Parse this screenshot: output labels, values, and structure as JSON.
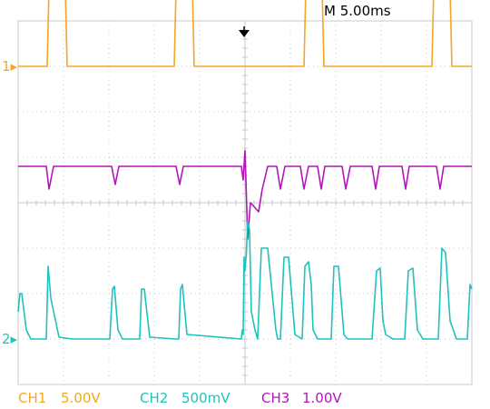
{
  "header": {
    "timebase": "M 5.00ms"
  },
  "colors": {
    "ch1": "#f5a623",
    "ch2": "#1fc2bd",
    "ch3": "#b316b8",
    "grid": "#c8c8c8"
  },
  "channels": [
    {
      "id": "ch1",
      "label": "CH1",
      "scale": "5.00V",
      "marker": "1"
    },
    {
      "id": "ch2",
      "label": "CH2",
      "scale": "500mV",
      "marker": "2"
    },
    {
      "id": "ch3",
      "label": "CH3",
      "scale": "1.00V",
      "marker": ""
    }
  ],
  "chart_data": {
    "type": "line",
    "title": "",
    "xlabel": "",
    "ylabel": "",
    "grid": true,
    "x_unit": "ms",
    "x_per_div": 5.0,
    "x_range": [
      -25,
      25
    ],
    "series": [
      {
        "name": "CH1",
        "volts_per_div": 5.0,
        "offset_div": 3.0,
        "x": [
          -25,
          -21.8,
          -21.6,
          -19.8,
          -19.6,
          -7.8,
          -7.6,
          -5.8,
          -5.6,
          6.5,
          6.7,
          8.5,
          8.7,
          20.6,
          20.8,
          22.6,
          22.8,
          25
        ],
        "y": [
          0,
          0,
          8.5,
          8.5,
          0,
          0,
          8.5,
          8.5,
          0,
          0,
          8.5,
          8.5,
          0,
          0,
          8.5,
          8.5,
          0,
          0
        ]
      },
      {
        "name": "CH3",
        "volts_per_div": 1.0,
        "offset_div": 0.8,
        "x": [
          -25,
          -21.9,
          -21.6,
          -21.1,
          -18.8,
          -14.7,
          -14.3,
          -13.9,
          -11.6,
          -7.6,
          -7.2,
          -6.8,
          -0.4,
          -0.2,
          0,
          0.3,
          0.6,
          1.5,
          1.9,
          2.5,
          3.5,
          3.9,
          4.4,
          6.1,
          6.5,
          7.0,
          8.0,
          8.4,
          8.8,
          10.7,
          11.1,
          11.6,
          14.0,
          14.4,
          14.8,
          17.3,
          17.7,
          18.1,
          21.1,
          21.5,
          21.9,
          25
        ],
        "y": [
          0,
          0,
          -0.5,
          0,
          0,
          0,
          -0.4,
          0,
          0,
          0,
          -0.4,
          0,
          0,
          -0.3,
          0.35,
          -1.6,
          -0.8,
          -1.0,
          -0.5,
          0,
          0,
          -0.5,
          0,
          0,
          -0.5,
          0,
          0,
          -0.5,
          0,
          0,
          -0.5,
          0,
          0,
          -0.5,
          0,
          0,
          -0.5,
          0,
          0,
          -0.5,
          0,
          0
        ]
      },
      {
        "name": "CH2",
        "volts_per_div": 0.5,
        "offset_div": -3.0,
        "x": [
          -25,
          -24.8,
          -24.6,
          -24.1,
          -23.6,
          -21.9,
          -21.7,
          -21.4,
          -20.5,
          -19.0,
          -14.9,
          -14.6,
          -14.4,
          -14.0,
          -13.5,
          -11.6,
          -11.4,
          -11.1,
          -10.5,
          -7.6,
          -7.3,
          -7.1,
          -6.9,
          -6.4,
          -0.4,
          -0.3,
          -0.2,
          -0.1,
          0,
          0.15,
          0.3,
          0.5,
          0.7,
          1.1,
          1.4,
          1.8,
          2.5,
          3.4,
          3.6,
          3.9,
          4.3,
          4.8,
          5.5,
          6.3,
          6.6,
          7.0,
          7.3,
          7.5,
          8.0,
          8.5,
          9.5,
          9.8,
          10.3,
          10.9,
          11.3,
          11.9,
          14.0,
          14.5,
          14.9,
          15.2,
          15.5,
          16.3,
          17.6,
          18.0,
          18.5,
          19.0,
          19.6,
          21.3,
          21.7,
          22.1,
          22.6,
          23.3,
          24.5,
          24.8,
          25
        ],
        "y": [
          0.3,
          0.5,
          0.5,
          0.1,
          0,
          0,
          0.8,
          0.45,
          0.02,
          0,
          0,
          0.55,
          0.58,
          0.1,
          0,
          0,
          0.55,
          0.55,
          0.02,
          0,
          0,
          0.55,
          0.6,
          0.05,
          0,
          0.1,
          0.05,
          0.9,
          0.75,
          0.95,
          1.3,
          1.2,
          0.3,
          0.1,
          0,
          1.0,
          1.0,
          0.1,
          0,
          0,
          0.9,
          0.9,
          0.05,
          0,
          0.8,
          0.85,
          0.6,
          0.1,
          0,
          0,
          0,
          0.8,
          0.8,
          0.05,
          0,
          0,
          0,
          0.75,
          0.78,
          0.2,
          0.05,
          0,
          0,
          0.75,
          0.78,
          0.1,
          0,
          0,
          1.0,
          0.95,
          0.2,
          0,
          0,
          0.6,
          0.55
        ]
      }
    ]
  }
}
